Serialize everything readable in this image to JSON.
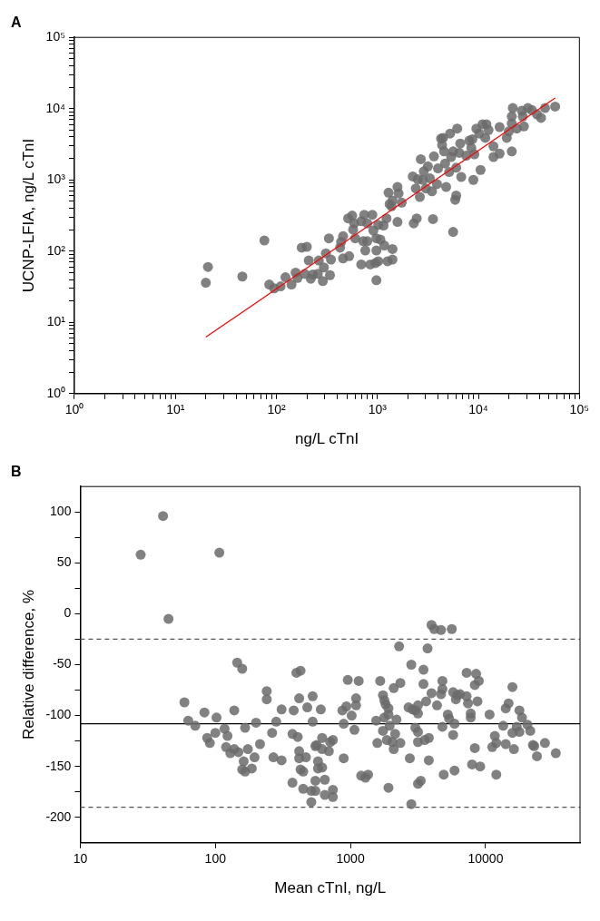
{
  "chart_data": [
    {
      "type": "scatter",
      "title": "A",
      "xlabel": "ng/L cTnI",
      "ylabel": "UCNP-LFIA, ng/L cTnI",
      "log": "xy",
      "grid": false,
      "legend": false,
      "marker": "circle",
      "xlim": [
        1,
        100000
      ],
      "ylim": [
        1,
        100000
      ],
      "xticks": [
        {
          "value": 1,
          "label": "10⁰"
        },
        {
          "value": 2,
          "label": null
        },
        {
          "value": 3,
          "label": null
        },
        {
          "value": 4,
          "label": null
        },
        {
          "value": 5,
          "label": null
        },
        {
          "value": 6,
          "label": null
        },
        {
          "value": 7,
          "label": null
        },
        {
          "value": 8,
          "label": null
        },
        {
          "value": 9,
          "label": null
        },
        {
          "value": 10,
          "label": "10¹"
        },
        {
          "value": 20,
          "label": null
        },
        {
          "value": 30,
          "label": null
        },
        {
          "value": 40,
          "label": null
        },
        {
          "value": 50,
          "label": null
        },
        {
          "value": 60,
          "label": null
        },
        {
          "value": 70,
          "label": null
        },
        {
          "value": 80,
          "label": null
        },
        {
          "value": 90,
          "label": null
        },
        {
          "value": 100,
          "label": "10²"
        },
        {
          "value": 200,
          "label": null
        },
        {
          "value": 300,
          "label": null
        },
        {
          "value": 400,
          "label": null
        },
        {
          "value": 500,
          "label": null
        },
        {
          "value": 600,
          "label": null
        },
        {
          "value": 700,
          "label": null
        },
        {
          "value": 800,
          "label": null
        },
        {
          "value": 900,
          "label": null
        },
        {
          "value": 1000,
          "label": "10³"
        },
        {
          "value": 2000,
          "label": null
        },
        {
          "value": 3000,
          "label": null
        },
        {
          "value": 4000,
          "label": null
        },
        {
          "value": 5000,
          "label": null
        },
        {
          "value": 6000,
          "label": null
        },
        {
          "value": 7000,
          "label": null
        },
        {
          "value": 8000,
          "label": null
        },
        {
          "value": 9000,
          "label": null
        },
        {
          "value": 10000,
          "label": "10⁴"
        },
        {
          "value": 20000,
          "label": null
        },
        {
          "value": 30000,
          "label": null
        },
        {
          "value": 40000,
          "label": null
        },
        {
          "value": 50000,
          "label": null
        },
        {
          "value": 60000,
          "label": null
        },
        {
          "value": 70000,
          "label": null
        },
        {
          "value": 80000,
          "label": null
        },
        {
          "value": 90000,
          "label": null
        },
        {
          "value": 100000,
          "label": "10⁵"
        }
      ],
      "yticks": [
        {
          "value": 1,
          "label": "10⁰"
        },
        {
          "value": 2,
          "label": null
        },
        {
          "value": 3,
          "label": null
        },
        {
          "value": 4,
          "label": null
        },
        {
          "value": 5,
          "label": null
        },
        {
          "value": 6,
          "label": null
        },
        {
          "value": 7,
          "label": null
        },
        {
          "value": 8,
          "label": null
        },
        {
          "value": 9,
          "label": null
        },
        {
          "value": 10,
          "label": "10¹"
        },
        {
          "value": 20,
          "label": null
        },
        {
          "value": 30,
          "label": null
        },
        {
          "value": 40,
          "label": null
        },
        {
          "value": 50,
          "label": null
        },
        {
          "value": 60,
          "label": null
        },
        {
          "value": 70,
          "label": null
        },
        {
          "value": 80,
          "label": null
        },
        {
          "value": 90,
          "label": null
        },
        {
          "value": 100,
          "label": "10²"
        },
        {
          "value": 200,
          "label": null
        },
        {
          "value": 300,
          "label": null
        },
        {
          "value": 400,
          "label": null
        },
        {
          "value": 500,
          "label": null
        },
        {
          "value": 600,
          "label": null
        },
        {
          "value": 700,
          "label": null
        },
        {
          "value": 800,
          "label": null
        },
        {
          "value": 900,
          "label": null
        },
        {
          "value": 1000,
          "label": "10³"
        },
        {
          "value": 2000,
          "label": null
        },
        {
          "value": 3000,
          "label": null
        },
        {
          "value": 4000,
          "label": null
        },
        {
          "value": 5000,
          "label": null
        },
        {
          "value": 6000,
          "label": null
        },
        {
          "value": 7000,
          "label": null
        },
        {
          "value": 8000,
          "label": null
        },
        {
          "value": 9000,
          "label": null
        },
        {
          "value": 10000,
          "label": "10⁴"
        },
        {
          "value": 20000,
          "label": null
        },
        {
          "value": 30000,
          "label": null
        },
        {
          "value": 40000,
          "label": null
        },
        {
          "value": 50000,
          "label": null
        },
        {
          "value": 60000,
          "label": null
        },
        {
          "value": 70000,
          "label": null
        },
        {
          "value": 80000,
          "label": null
        },
        {
          "value": 90000,
          "label": null
        },
        {
          "value": 100000,
          "label": "10⁵"
        }
      ],
      "series": [
        {
          "color": "#6b6b6b",
          "x": [
            20,
            21,
            46,
            76,
            85,
            95,
            110,
            123,
            141,
            155,
            162,
            178,
            200,
            191,
            219,
            229,
            257,
            209,
            263,
            295,
            309,
            339,
            288,
            331,
            347,
            427,
            437,
            457,
            457,
            525,
            513,
            562,
            589,
            575,
            603,
            692,
            741,
            794,
            891,
            692,
            724,
            759,
            794,
            851,
            912,
            955,
            977,
            977,
            977,
            1070,
            1020,
            1170,
            1150,
            1020,
            1230,
            1260,
            1410,
            1410,
            1580,
            1290,
            1320,
            1410,
            1580,
            1620,
            1740,
            1380,
            2240,
            2290,
            2450,
            2400,
            2630,
            2510,
            2820,
            2690,
            2880,
            3020,
            3160,
            3310,
            3470,
            3630,
            3550,
            3890,
            3980,
            4270,
            4470,
            4370,
            4570,
            4680,
            4790,
            5250,
            5370,
            5130,
            5620,
            5620,
            5890,
            6030,
            6030,
            6170,
            6460,
            6610,
            6760,
            7590,
            8130,
            8510,
            8710,
            8910,
            9120,
            9550,
            10500,
            10200,
            11000,
            11700,
            12000,
            12600,
            14100,
            14100,
            16200,
            16200,
            19100,
            20000,
            21400,
            21400,
            21400,
            21900,
            24000,
            26900,
            27500,
            28200,
            30900,
            33900,
            38000,
            41700,
            45700,
            57500
          ],
          "values": [
            36,
            60,
            44,
            141,
            34,
            30,
            32,
            43,
            34,
            50,
            42,
            112,
            115,
            48,
            41,
            47,
            48,
            74,
            74,
            59,
            93,
            46,
            38,
            151,
            76,
            112,
            135,
            162,
            79,
            85,
            288,
            316,
            245,
            200,
            151,
            263,
            324,
            245,
            324,
            65,
            138,
            102,
            138,
            65,
            195,
            68,
            39,
            102,
            151,
            145,
            72,
            120,
            229,
            234,
            288,
            72,
            107,
            76,
            257,
            661,
            457,
            513,
            794,
            646,
            479,
            427,
            1120,
            245,
            288,
            759,
            575,
            1020,
            1000,
            1950,
            1320,
            759,
            1550,
            1050,
            692,
            2140,
            282,
            871,
            1450,
            3800,
            3890,
            3090,
            2510,
            1700,
            794,
            4470,
            2090,
            1290,
            2510,
            186,
            525,
            603,
            1480,
            5250,
            2400,
            3240,
            1100,
            2190,
            3550,
            2820,
            3720,
            1000,
            2290,
            5250,
            1380,
            4470,
            6030,
            3890,
            6030,
            5010,
            2950,
            2090,
            2340,
            5500,
            3890,
            4790,
            2510,
            6170,
            7760,
            10200,
            5250,
            9330,
            7760,
            5620,
            10200,
            9550,
            8320,
            7410,
            10200,
            10700
          ]
        },
        {
          "type": "line",
          "marker": "none",
          "color": "#ff0000",
          "x": [
            20,
            57500
          ],
          "values": [
            6.2,
            14100
          ]
        }
      ]
    },
    {
      "type": "scatter",
      "title": "B",
      "xlabel": "Mean cTnI, ng/L",
      "ylabel": "Relative difference, %",
      "log": "x",
      "grid": false,
      "legend": false,
      "marker": "circle",
      "xlim": [
        10,
        50000
      ],
      "ylim": [
        -225,
        125
      ],
      "xticks": [
        10,
        100,
        1000,
        10000
      ],
      "yticks": [
        100,
        {
          "value": 75,
          "label": null
        },
        50,
        {
          "value": 25,
          "label": null
        },
        0,
        {
          "value": -25,
          "label": null
        },
        -50,
        {
          "value": -75,
          "label": null
        },
        -100,
        {
          "value": -125,
          "label": null
        },
        -150,
        {
          "value": -175,
          "label": null
        },
        -200
      ],
      "ref_lines": [
        {
          "axis": "y",
          "value": -108,
          "color": "#000000",
          "line_style": "solid"
        },
        {
          "axis": "y",
          "value": -25,
          "color": "#555555",
          "line_style": "dashed"
        },
        {
          "axis": "y",
          "value": -190,
          "color": "#555555",
          "line_style": "dashed"
        }
      ],
      "series": [
        {
          "color": "#6b6b6b",
          "x": [
            28,
            41,
            45,
            107,
            59,
            63,
            71,
            83,
            87,
            91,
            102,
            100,
            117,
            123,
            120,
            129,
            138,
            138,
            145,
            158,
            148,
            166,
            162,
            174,
            158,
            166,
            186,
            195,
            200,
            214,
            240,
            240,
            263,
            269,
            282,
            309,
            309,
            372,
            380,
            372,
            398,
            427,
            407,
            417,
            417,
            417,
            427,
            447,
            447,
            468,
            479,
            525,
            525,
            513,
            513,
            550,
            550,
            562,
            550,
            575,
            575,
            603,
            617,
            617,
            617,
            646,
            646,
            692,
            708,
            741,
            741,
            741,
            871,
            891,
            891,
            933,
            955,
            1020,
            1070,
            1100,
            1100,
            1150,
            1200,
            1290,
            1350,
            1550,
            1580,
            1660,
            1740,
            1780,
            1740,
            1780,
            1820,
            1910,
            1910,
            1860,
            1910,
            1950,
            2040,
            2090,
            2090,
            2140,
            2190,
            2290,
            2340,
            2340,
            2690,
            2750,
            2820,
            2820,
            2880,
            3020,
            3020,
            3160,
            3160,
            3160,
            3160,
            3310,
            3160,
            3470,
            3470,
            3550,
            3630,
            3720,
            3800,
            3800,
            3980,
            4170,
            3980,
            4370,
            4680,
            4680,
            4790,
            4790,
            4790,
            4900,
            5250,
            5370,
            5620,
            5750,
            5750,
            5890,
            5890,
            6030,
            6170,
            6460,
            7240,
            7240,
            7410,
            7760,
            7760,
            7940,
            8320,
            8320,
            8510,
            8910,
            8710,
            9120,
            10700,
            11200,
            11700,
            12000,
            12000,
            13500,
            14100,
            14100,
            14800,
            15800,
            15800,
            16200,
            17000,
            17800,
            17800,
            18600,
            20400,
            21400,
            22400,
            22900,
            24000,
            27500,
            33100
          ],
          "values": [
            58,
            96,
            -5,
            60,
            -87,
            -105,
            -110,
            -97,
            -122,
            -127,
            -102,
            -117,
            -113,
            -120,
            -131,
            -137,
            -95,
            -133,
            -48,
            -54,
            -136,
            -112,
            -145,
            -133,
            -153,
            -155,
            -152,
            -141,
            -107,
            -128,
            -76,
            -84,
            -117,
            -141,
            -106,
            -144,
            -94,
            -166,
            -95,
            -118,
            -58,
            -56,
            -121,
            -83,
            -135,
            -142,
            -153,
            -155,
            -172,
            -141,
            -92,
            -106,
            -81,
            -174,
            -185,
            -174,
            -130,
            -129,
            -164,
            -145,
            -152,
            -94,
            -151,
            -122,
            -133,
            -163,
            -178,
            -135,
            -126,
            -124,
            -173,
            -180,
            -95,
            -108,
            -142,
            -91,
            -65,
            -100,
            -114,
            -90,
            -83,
            -66,
            -159,
            -161,
            -158,
            -105,
            -127,
            -66,
            -80,
            -85,
            -115,
            -102,
            -89,
            -93,
            -171,
            -124,
            -99,
            -110,
            -126,
            -133,
            -73,
            -118,
            -104,
            -32,
            -68,
            -127,
            -92,
            -142,
            -50,
            -187,
            -94,
            -95,
            -112,
            -167,
            -116,
            -90,
            -98,
            -164,
            -126,
            -55,
            -69,
            -124,
            -86,
            -34,
            -122,
            -144,
            -11,
            -15,
            -78,
            -90,
            -16,
            -79,
            -74,
            -66,
            -111,
            -158,
            -99,
            -103,
            -15,
            -119,
            -77,
            -108,
            -154,
            -84,
            -80,
            -79,
            -58,
            -81,
            -88,
            -98,
            -102,
            -148,
            -70,
            -132,
            -59,
            -66,
            -86,
            -150,
            -99,
            -131,
            -120,
            -158,
            -127,
            -110,
            -93,
            -128,
            -88,
            -72,
            -117,
            -133,
            -111,
            -116,
            -95,
            -102,
            -109,
            -115,
            -129,
            -130,
            -140,
            -127,
            -137
          ]
        }
      ]
    }
  ]
}
